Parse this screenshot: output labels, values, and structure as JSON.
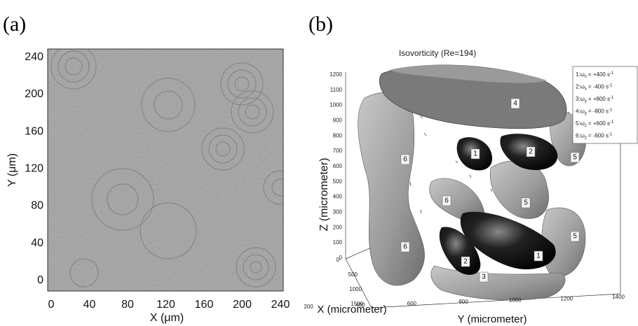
{
  "panel_a": {
    "label": "(a)",
    "x_axis": {
      "label": "X (μm)",
      "ticks": [
        0,
        40,
        80,
        120,
        160,
        200,
        240
      ]
    },
    "y_axis": {
      "label": "Y (μm)",
      "ticks": [
        0,
        40,
        80,
        120,
        160,
        200,
        240
      ]
    }
  },
  "panel_b": {
    "label": "(b)",
    "title": "Isovorticity (Re=194)",
    "z_axis": {
      "label": "Z (micrometer)",
      "ticks": [
        0,
        100,
        200,
        300,
        400,
        500,
        600,
        700,
        800,
        900,
        1000,
        1100,
        1200
      ]
    },
    "x_axis": {
      "label": "X (micrometer)",
      "ticks": [
        0,
        500,
        1000,
        1500
      ]
    },
    "y_axis": {
      "label": "Y (micrometer)",
      "ticks": [
        200,
        400,
        600,
        800,
        1000,
        1200,
        1400
      ]
    },
    "legend": [
      {
        "id": "1:",
        "symbol": "ω",
        "component": "x",
        "value": "= +400 s",
        "exponent": "-1"
      },
      {
        "id": "2:",
        "symbol": "ω",
        "component": "x",
        "value": "= -400 s",
        "exponent": "-1"
      },
      {
        "id": "3:",
        "symbol": "ω",
        "component": "y",
        "value": "= +800 s",
        "exponent": "-1"
      },
      {
        "id": "4:",
        "symbol": "ω",
        "component": "y",
        "value": "= -800 s",
        "exponent": "-1"
      },
      {
        "id": "5:",
        "symbol": "ω",
        "component": "z",
        "value": "= +600 s",
        "exponent": "-1"
      },
      {
        "id": "6:",
        "symbol": "ω",
        "component": "z",
        "value": "= -600 s",
        "exponent": "-1"
      }
    ],
    "structure_labels": [
      "4",
      "1",
      "2",
      "5",
      "6",
      "6",
      "5",
      "5",
      "6",
      "1",
      "2",
      "3"
    ]
  }
}
